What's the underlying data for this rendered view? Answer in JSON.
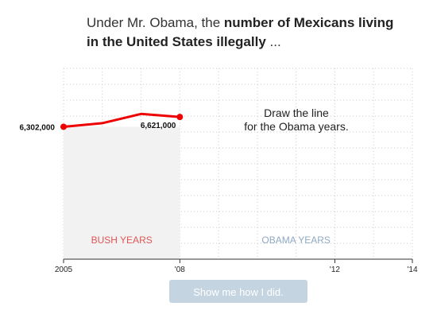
{
  "headline": {
    "lead": "Under Mr. Obama, the ",
    "emphasis": "number of Mexicans living in the United States illegally",
    "trail": " ..."
  },
  "prompt": {
    "line1": "Draw the line",
    "line2": "for the Obama years."
  },
  "button": {
    "label": "Show me how I did."
  },
  "chart_data": {
    "type": "line",
    "x": [
      2005,
      2006,
      2007,
      2008
    ],
    "series": [
      {
        "values": [
          6302000,
          6420000,
          6720000,
          6621000
        ]
      }
    ],
    "xlim": [
      2005,
      2014
    ],
    "xticks": [
      {
        "value": 2005,
        "label": "2005"
      },
      {
        "value": 2008,
        "label": "'08"
      },
      {
        "value": 2012,
        "label": "'12"
      },
      {
        "value": 2014,
        "label": "'14"
      }
    ],
    "ylim": [
      2000000,
      8200000
    ],
    "point_labels": [
      {
        "x": 2005,
        "text": "6,302,000"
      },
      {
        "x": 2008,
        "text": "6,621,000"
      }
    ],
    "regions": [
      {
        "label": "BUSH YEARS",
        "from": 2005,
        "to": 2008,
        "color": "#e05555",
        "fill": "#f2f2f2"
      },
      {
        "label": "OBAMA YEARS",
        "from": 2008,
        "to": 2014,
        "color": "#8fa9c4"
      }
    ],
    "colors": {
      "line": "#ee0000",
      "grid": "#cccccc",
      "axis": "#333333"
    },
    "grid": true
  }
}
